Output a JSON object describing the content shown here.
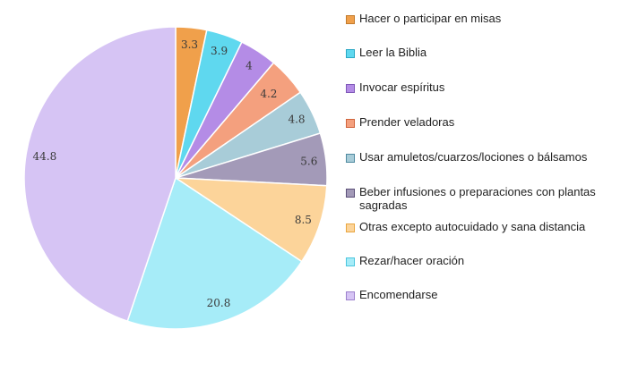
{
  "chart_data": {
    "type": "pie",
    "slices": [
      {
        "label": "Hacer o participar en misas",
        "value": 3.3,
        "value_label": "3.3",
        "color": "#f0a04b",
        "edge": "#c27a2c"
      },
      {
        "label": "Leer la Biblia",
        "value": 3.9,
        "value_label": "3.9",
        "color": "#5fd8ef",
        "edge": "#2aa8c4"
      },
      {
        "label": "Invocar espíritus",
        "value": 4.0,
        "value_label": "4",
        "color": "#b48ce6",
        "edge": "#7f58b8"
      },
      {
        "label": "Prender veladoras",
        "value": 4.2,
        "value_label": "4.2",
        "color": "#f4a07e",
        "edge": "#d0643c"
      },
      {
        "label": "Usar amuletos/cuarzos/lociones o bálsamos",
        "value": 4.8,
        "value_label": "4.8",
        "color": "#a8ccd8",
        "edge": "#4f8aa0"
      },
      {
        "label": "Beber infusiones o preparaciones con plantas sagradas",
        "value": 5.6,
        "value_label": "5.6",
        "color": "#a39ab8",
        "edge": "#5b4f78"
      },
      {
        "label": "Otras excepto autocuidado y sana distancia",
        "value": 8.5,
        "value_label": "8.5",
        "color": "#fcd49a",
        "edge": "#e9a640"
      },
      {
        "label": "Rezar/hacer oración",
        "value": 20.8,
        "value_label": "20.8",
        "color": "#a6ecf8",
        "edge": "#4cc6de"
      },
      {
        "label": "Encomendarse",
        "value": 44.8,
        "value_label": "44.8",
        "color": "#d6c4f4",
        "edge": "#9c80cc"
      }
    ],
    "legend_position": "right"
  }
}
